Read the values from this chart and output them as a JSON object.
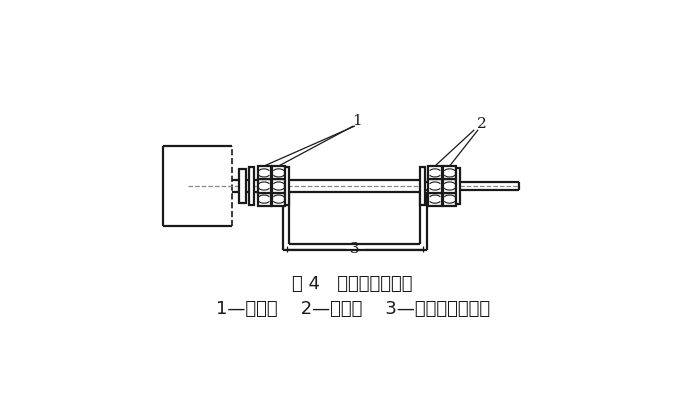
{
  "title": "图 4   接线方式结构图",
  "subtitle": "1—铜垫片    2—铜螺母    3—外接排接入位置",
  "bg_color": "#ffffff",
  "line_color": "#1a1a1a",
  "label1": "1",
  "label2": "2",
  "label3": "3",
  "title_fontsize": 13,
  "subtitle_fontsize": 13
}
